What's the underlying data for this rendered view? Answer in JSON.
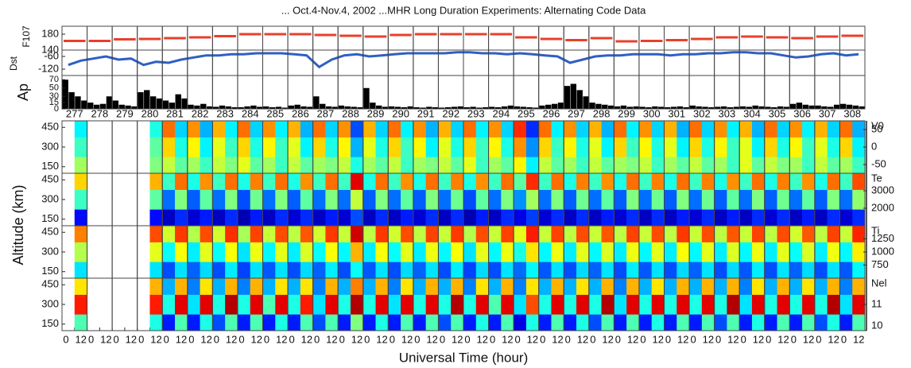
{
  "figure": {
    "title": "... Oct.4-Nov.4, 2002 ...MHR Long Duration Experiments: Alternating Code Data",
    "xlabel": "Universal Time (hour)",
    "ylabel": "Altitude (km)",
    "days": [
      277,
      278,
      279,
      280,
      281,
      282,
      283,
      284,
      285,
      286,
      287,
      288,
      289,
      290,
      291,
      292,
      293,
      294,
      295,
      296,
      297,
      298,
      299,
      300,
      301,
      302,
      303,
      304,
      305,
      306,
      307,
      308
    ],
    "hour_ticks": [
      0,
      12
    ]
  },
  "chart_data": [
    {
      "type": "step",
      "ylabel": "F107",
      "color": "#e8402a",
      "ylim": [
        140,
        200
      ],
      "yticks": [
        140,
        180
      ],
      "values": [
        163,
        163,
        167,
        168,
        170,
        172,
        175,
        180,
        180,
        180,
        178,
        176,
        174,
        178,
        180,
        180,
        180,
        180,
        172,
        168,
        165,
        170,
        162,
        163,
        165,
        168,
        172,
        174,
        172,
        170,
        174,
        176
      ]
    },
    {
      "type": "line",
      "ylabel": "Dst",
      "color": "#2f5fc4",
      "ylim": [
        -150,
        -30
      ],
      "yticks": [
        -120,
        -60
      ],
      "values": [
        -100,
        -80,
        -70,
        -60,
        -75,
        -70,
        -100,
        -85,
        -90,
        -75,
        -65,
        -55,
        -55,
        -50,
        -50,
        -45,
        -45,
        -45,
        -50,
        -55,
        -110,
        -75,
        -55,
        -50,
        -60,
        -55,
        -50,
        -45,
        -45,
        -45,
        -45,
        -40,
        -40,
        -45,
        -45,
        -50,
        -45,
        -50,
        -55,
        -60,
        -90,
        -75,
        -60,
        -55,
        -55,
        -50,
        -50,
        -50,
        -55,
        -50,
        -50,
        -45,
        -45,
        -40,
        -40,
        -45,
        -45,
        -55,
        -65,
        -60,
        -50,
        -45,
        -55,
        -50
      ]
    },
    {
      "type": "bar",
      "ylabel": "Ap",
      "color": "#000000",
      "ylim": [
        0,
        80
      ],
      "yticks": [
        0,
        15,
        30,
        50,
        70
      ],
      "values": [
        70,
        40,
        30,
        20,
        15,
        10,
        12,
        30,
        20,
        10,
        8,
        6,
        40,
        45,
        30,
        25,
        20,
        15,
        35,
        25,
        10,
        8,
        12,
        6,
        5,
        8,
        6,
        4,
        4,
        6,
        8,
        5,
        6,
        4,
        5,
        3,
        8,
        10,
        6,
        5,
        30,
        12,
        6,
        5,
        8,
        6,
        5,
        4,
        50,
        15,
        8,
        5,
        6,
        5,
        4,
        6,
        4,
        3,
        5,
        4,
        3,
        4,
        5,
        6,
        4,
        5,
        3,
        4,
        5,
        4,
        6,
        8,
        6,
        5,
        4,
        3,
        8,
        10,
        12,
        15,
        55,
        60,
        45,
        30,
        15,
        12,
        10,
        8,
        6,
        8,
        5,
        6,
        5,
        4,
        6,
        5,
        4,
        5,
        6,
        4,
        8,
        6,
        5,
        4,
        5,
        6,
        4,
        5,
        6,
        5,
        8,
        6,
        5,
        4,
        6,
        5,
        12,
        15,
        10,
        8,
        8,
        6,
        5,
        10,
        12,
        10,
        8,
        6
      ]
    },
    {
      "type": "heatmap",
      "colorbar_label": "V0",
      "colormap": "jet",
      "zlim": [
        -75,
        75
      ],
      "zticks": [
        -50,
        0,
        50
      ],
      "ylim": [
        100,
        500
      ],
      "yticks": [
        150,
        300,
        450
      ],
      "altitude_edges": [
        100,
        225,
        375,
        500
      ],
      "values": [
        [
          null,
          5,
          null,
          null,
          null,
          null,
          null,
          0,
          10,
          -5,
          5,
          -10,
          10,
          0,
          15,
          -5,
          5,
          -10,
          10,
          -5,
          5,
          0,
          10,
          -15,
          5,
          -5,
          10,
          -10,
          5,
          0,
          10,
          -5,
          15,
          -10,
          5,
          -5,
          20,
          -20,
          10,
          -5,
          5,
          -10,
          10,
          -5,
          5,
          0,
          10,
          -10,
          5,
          -5,
          10,
          -5,
          5,
          -10,
          15,
          -5,
          10,
          0,
          5,
          -10,
          10,
          -5,
          5,
          -10
        ],
        [
          null,
          -10,
          null,
          null,
          null,
          null,
          null,
          -5,
          25,
          -15,
          20,
          -20,
          15,
          -10,
          25,
          -15,
          20,
          -10,
          15,
          -20,
          25,
          -15,
          20,
          -30,
          15,
          -15,
          25,
          -10,
          20,
          -20,
          15,
          -15,
          25,
          -10,
          20,
          -15,
          35,
          -35,
          25,
          -10,
          20,
          -15,
          15,
          -20,
          25,
          -10,
          20,
          -15,
          15,
          -20,
          25,
          -15,
          20,
          -10,
          15,
          -20,
          25,
          -15,
          20,
          -10,
          15,
          -15,
          25,
          -20
        ],
        [
          null,
          -20,
          null,
          null,
          null,
          null,
          null,
          -15,
          40,
          -25,
          35,
          -30,
          30,
          -20,
          40,
          -25,
          35,
          -20,
          30,
          -30,
          40,
          -25,
          35,
          -45,
          30,
          -25,
          40,
          -20,
          35,
          -30,
          30,
          -25,
          40,
          -20,
          35,
          -25,
          50,
          -50,
          40,
          -20,
          35,
          -25,
          30,
          -30,
          40,
          -20,
          35,
          -25,
          30,
          -30,
          40,
          -25,
          35,
          -20,
          30,
          -30,
          40,
          -25,
          35,
          -20,
          30,
          -25,
          40,
          -30
        ]
      ]
    },
    {
      "type": "heatmap",
      "colorbar_label": "Te",
      "colormap": "jet",
      "zlim": [
        1000,
        4000
      ],
      "zticks": [
        2000,
        3000
      ],
      "ylim": [
        100,
        500
      ],
      "yticks": [
        150,
        300,
        450
      ],
      "altitude_edges": [
        100,
        225,
        375,
        500
      ],
      "values": [
        [
          null,
          1400,
          null,
          null,
          null,
          null,
          null,
          1400,
          1200,
          1500,
          1250,
          1450,
          1200,
          1500,
          1150,
          1450,
          1200,
          1500,
          1250,
          1500,
          1200,
          1450,
          1250,
          1600,
          1200,
          1500,
          1200,
          1450,
          1250,
          1500,
          1200,
          1500,
          1150,
          1450,
          1200,
          1500,
          1300,
          1550,
          1250,
          1500,
          1200,
          1500,
          1200,
          1450,
          1250,
          1500,
          1200,
          1500,
          1200,
          1450,
          1250,
          1500,
          1200,
          1450,
          1200,
          1500,
          1250,
          1500,
          1200,
          1450,
          1200,
          1500,
          1250,
          1500
        ],
        [
          null,
          2300,
          null,
          null,
          null,
          null,
          null,
          2400,
          1700,
          2500,
          1650,
          2400,
          1700,
          2500,
          1600,
          2450,
          1700,
          2500,
          1650,
          2400,
          1700,
          2500,
          1700,
          2700,
          1650,
          2500,
          1700,
          2400,
          1650,
          2500,
          1700,
          2450,
          1600,
          2400,
          1700,
          2500,
          1800,
          2600,
          1700,
          2500,
          1650,
          2450,
          1700,
          2400,
          1650,
          2500,
          1700,
          2450,
          1650,
          2500,
          1700,
          2450,
          1650,
          2400,
          1700,
          2500,
          1650,
          2450,
          1700,
          2400,
          1650,
          2500,
          1700,
          2550
        ],
        [
          null,
          3000,
          null,
          null,
          null,
          null,
          null,
          3100,
          2300,
          3300,
          2200,
          3200,
          2300,
          3300,
          2200,
          3250,
          2300,
          3300,
          2200,
          3200,
          2300,
          3300,
          2300,
          3700,
          2200,
          3300,
          2300,
          3200,
          2200,
          3300,
          2300,
          3250,
          2200,
          3200,
          2300,
          3300,
          2400,
          3500,
          2300,
          3300,
          2200,
          3250,
          2300,
          3200,
          2200,
          3300,
          2300,
          3250,
          2200,
          3300,
          2300,
          3250,
          2200,
          3200,
          2300,
          3300,
          2200,
          3250,
          2300,
          3200,
          2200,
          3300,
          2300,
          3400
        ]
      ]
    },
    {
      "type": "heatmap",
      "colorbar_label": "Ti",
      "colormap": "jet",
      "zlim": [
        500,
        1500
      ],
      "zticks": [
        750,
        1000,
        1250
      ],
      "ylim": [
        100,
        500
      ],
      "yticks": [
        150,
        300,
        450
      ],
      "altitude_edges": [
        100,
        225,
        375,
        500
      ],
      "values": [
        [
          null,
          850,
          null,
          null,
          null,
          null,
          null,
          850,
          700,
          850,
          720,
          840,
          700,
          860,
          690,
          850,
          710,
          850,
          700,
          840,
          720,
          860,
          700,
          880,
          710,
          850,
          700,
          840,
          720,
          850,
          700,
          860,
          690,
          840,
          700,
          850,
          730,
          870,
          710,
          850,
          700,
          840,
          720,
          850,
          700,
          860,
          710,
          850,
          700,
          840,
          720,
          850,
          700,
          840,
          710,
          860,
          700,
          850,
          720,
          840,
          700,
          850,
          710,
          870
        ],
        [
          null,
          1050,
          null,
          null,
          null,
          null,
          null,
          1100,
          880,
          1120,
          860,
          1100,
          880,
          1120,
          850,
          1110,
          870,
          1100,
          860,
          1090,
          880,
          1120,
          870,
          1200,
          860,
          1120,
          880,
          1100,
          860,
          1110,
          870,
          1120,
          850,
          1100,
          870,
          1110,
          900,
          1150,
          870,
          1110,
          860,
          1100,
          870,
          1090,
          860,
          1110,
          870,
          1100,
          860,
          1120,
          870,
          1100,
          860,
          1090,
          870,
          1110,
          860,
          1100,
          880,
          1090,
          860,
          1110,
          870,
          1140
        ],
        [
          null,
          1250,
          null,
          null,
          null,
          null,
          null,
          1300,
          1080,
          1320,
          1050,
          1300,
          1080,
          1330,
          1040,
          1310,
          1070,
          1300,
          1060,
          1290,
          1080,
          1320,
          1070,
          1420,
          1060,
          1320,
          1080,
          1300,
          1060,
          1310,
          1070,
          1320,
          1050,
          1300,
          1070,
          1310,
          1100,
          1350,
          1070,
          1310,
          1060,
          1300,
          1070,
          1290,
          1060,
          1310,
          1070,
          1300,
          1060,
          1320,
          1070,
          1300,
          1060,
          1290,
          1070,
          1310,
          1060,
          1300,
          1080,
          1290,
          1060,
          1310,
          1070,
          1340
        ]
      ]
    },
    {
      "type": "heatmap",
      "colorbar_label": "Nel",
      "colormap": "jet",
      "zlim": [
        10,
        12
      ],
      "zticks": [
        10,
        11
      ],
      "ylim": [
        100,
        500
      ],
      "yticks": [
        150,
        300,
        450
      ],
      "altitude_edges": [
        100,
        225,
        375,
        500
      ],
      "values": [
        [
          null,
          10.9,
          null,
          null,
          null,
          null,
          null,
          10.8,
          10.3,
          10.9,
          10.3,
          10.8,
          10.4,
          10.9,
          10.3,
          10.9,
          10.3,
          10.8,
          10.3,
          10.9,
          10.4,
          10.9,
          10.3,
          11.0,
          10.3,
          10.8,
          10.3,
          10.9,
          10.3,
          10.9,
          10.4,
          10.9,
          10.3,
          10.8,
          10.3,
          10.9,
          10.2,
          10.8,
          10.3,
          10.9,
          10.3,
          10.8,
          10.4,
          10.9,
          10.3,
          10.9,
          10.3,
          10.8,
          10.3,
          10.9,
          10.3,
          10.9,
          10.4,
          10.9,
          10.3,
          10.8,
          10.3,
          10.9,
          10.3,
          10.9,
          10.4,
          10.8,
          10.3,
          10.9
        ],
        [
          null,
          11.7,
          null,
          null,
          null,
          null,
          null,
          11.7,
          10.8,
          11.8,
          10.7,
          11.8,
          10.8,
          11.9,
          10.8,
          11.8,
          10.9,
          11.8,
          10.8,
          11.7,
          10.7,
          11.8,
          10.8,
          11.9,
          10.8,
          11.8,
          10.7,
          11.8,
          10.8,
          11.8,
          10.8,
          11.9,
          10.8,
          11.8,
          10.9,
          11.8,
          10.7,
          11.6,
          10.8,
          11.8,
          10.8,
          11.8,
          10.8,
          11.9,
          10.7,
          11.8,
          10.8,
          11.8,
          10.8,
          11.8,
          10.8,
          11.8,
          10.8,
          11.9,
          10.7,
          11.8,
          10.8,
          11.8,
          10.8,
          11.8,
          10.8,
          11.9,
          10.7,
          11.8
        ],
        [
          null,
          11.3,
          null,
          null,
          null,
          null,
          null,
          11.4,
          10.6,
          11.4,
          10.5,
          11.3,
          10.6,
          11.4,
          10.5,
          11.4,
          10.6,
          11.3,
          10.6,
          11.3,
          10.5,
          11.4,
          10.6,
          11.5,
          10.6,
          11.4,
          10.5,
          11.3,
          10.6,
          11.4,
          10.6,
          11.4,
          10.5,
          11.3,
          10.6,
          11.4,
          10.5,
          11.3,
          10.6,
          11.4,
          10.6,
          11.3,
          10.6,
          11.4,
          10.5,
          11.4,
          10.6,
          11.3,
          10.6,
          11.4,
          10.6,
          11.4,
          10.6,
          11.4,
          10.5,
          11.3,
          10.6,
          11.4,
          10.6,
          11.3,
          10.6,
          11.4,
          10.5,
          11.4
        ]
      ]
    }
  ]
}
